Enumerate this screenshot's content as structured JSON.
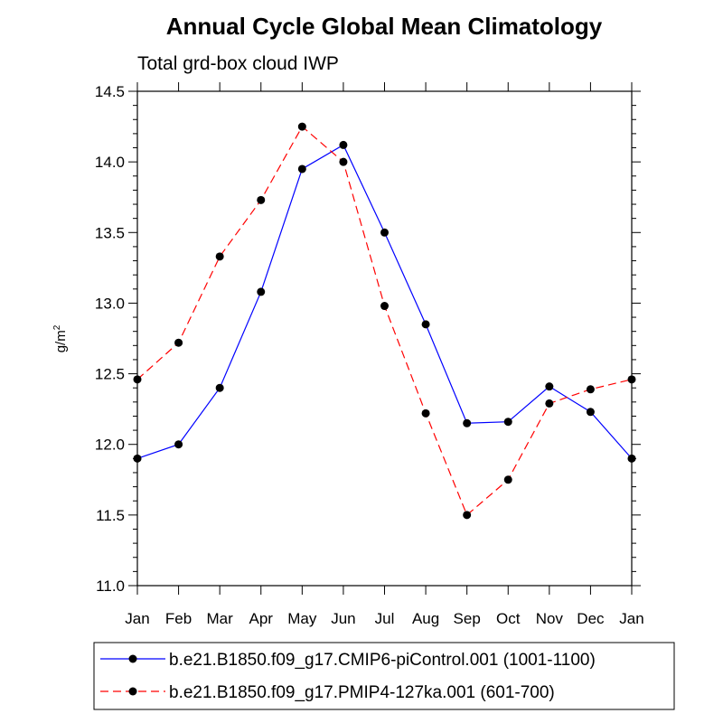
{
  "chart_data": {
    "type": "line",
    "title": "Annual Cycle Global Mean Climatology",
    "subtitle": "Total grd-box cloud IWP",
    "xlabel": "",
    "ylabel_main": "g/m",
    "ylabel_sup": "2",
    "categories": [
      "Jan",
      "Feb",
      "Mar",
      "Apr",
      "May",
      "Jun",
      "Jul",
      "Aug",
      "Sep",
      "Oct",
      "Nov",
      "Dec",
      "Jan"
    ],
    "ylim": [
      11.0,
      14.5
    ],
    "yticks": [
      "11.0",
      "11.5",
      "12.0",
      "12.5",
      "13.0",
      "13.5",
      "14.0",
      "14.5"
    ],
    "series": [
      {
        "name": "b.e21.B1850.f09_g17.CMIP6-piControl.001 (1001-1100)",
        "color": "#0000ff",
        "dash": "solid",
        "values": [
          11.9,
          12.0,
          12.4,
          13.08,
          13.95,
          14.12,
          13.5,
          12.85,
          12.15,
          12.16,
          12.41,
          12.23,
          11.9
        ]
      },
      {
        "name": "b.e21.B1850.f09_g17.PMIP4-127ka.001 (601-700)",
        "color": "#ff0000",
        "dash": "dashed",
        "values": [
          12.46,
          12.72,
          13.33,
          13.73,
          14.25,
          14.0,
          12.98,
          12.22,
          11.5,
          11.75,
          12.29,
          12.39,
          12.46
        ]
      }
    ],
    "legend_position": "bottom",
    "grid": false
  }
}
